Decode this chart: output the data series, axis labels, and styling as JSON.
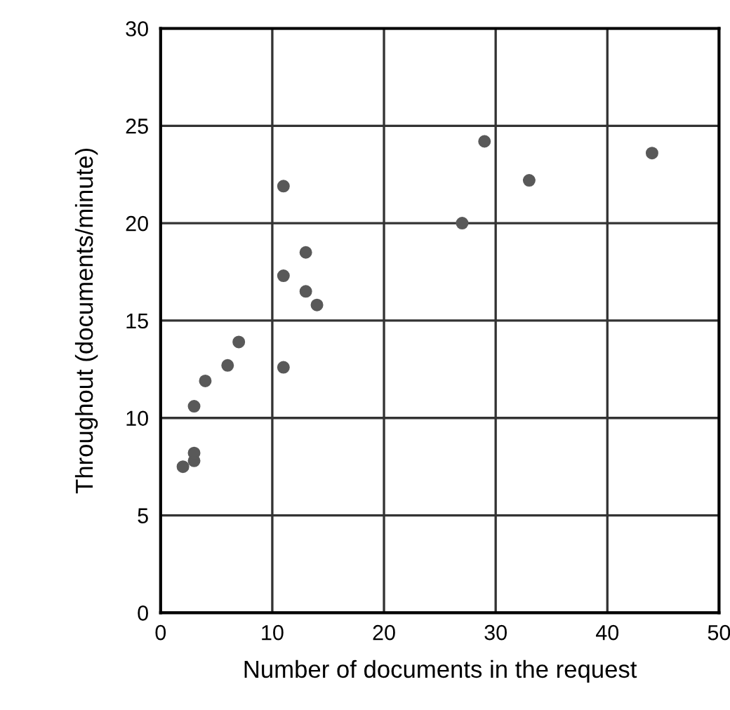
{
  "chart_data": {
    "type": "scatter",
    "xlabel": "Number of documents in the request",
    "ylabel": "Throughout (documents/minute)",
    "series": [
      {
        "color": "#595959",
        "x": [
          2,
          3,
          3,
          3,
          4,
          6,
          7,
          11,
          11,
          11,
          13,
          13,
          14,
          27,
          29,
          33,
          44
        ],
        "values": [
          7.5,
          7.8,
          8.2,
          10.6,
          11.9,
          12.7,
          13.9,
          12.6,
          17.3,
          21.9,
          16.5,
          18.5,
          15.8,
          20,
          24.2,
          22.2,
          23.6
        ]
      }
    ],
    "xlim": [
      0,
      50
    ],
    "xticks": [
      0,
      10,
      20,
      30,
      40,
      50
    ],
    "ylim": [
      0,
      30
    ],
    "yticks": [
      0,
      5,
      10,
      15,
      20,
      25,
      30
    ],
    "grid": true,
    "marker": "circle",
    "legend": false
  }
}
